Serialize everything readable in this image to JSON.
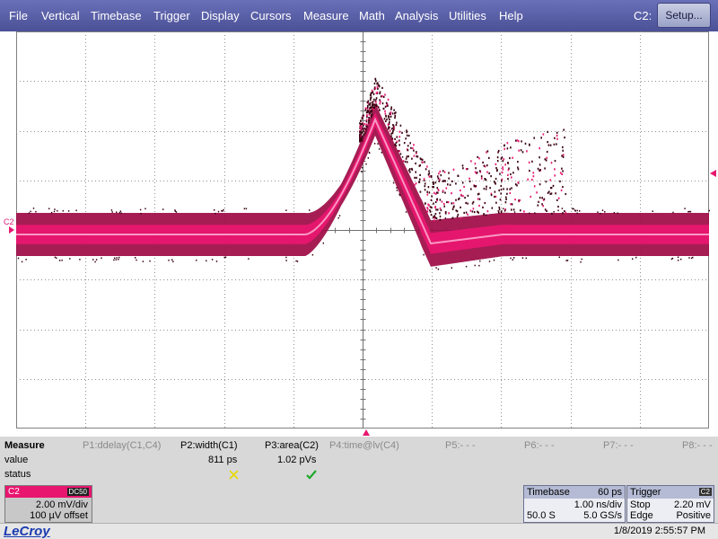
{
  "menu": {
    "items": [
      "File",
      "Vertical",
      "Timebase",
      "Trigger",
      "Display",
      "Cursors",
      "Measure",
      "Math",
      "Analysis",
      "Utilities",
      "Help"
    ],
    "channel_label": "C2:",
    "setup_label": "Setup..."
  },
  "display": {
    "channel_tag": "C2",
    "trace_color": "#e8166f",
    "persistence_edge_color": "#3a0010"
  },
  "measure": {
    "title": "Measure",
    "row_labels": [
      "value",
      "status"
    ],
    "params": [
      {
        "name": "P1:ddelay(C1,C4)",
        "value": "",
        "status": "",
        "active": false
      },
      {
        "name": "P2:width(C1)",
        "value": "811 ps",
        "status": "warning",
        "active": true
      },
      {
        "name": "P3:area(C2)",
        "value": "1.02 pVs",
        "status": "ok",
        "active": true
      },
      {
        "name": "P4:time@lv(C4)",
        "value": "",
        "status": "",
        "active": false
      },
      {
        "name": "P5:- - -",
        "value": "",
        "status": "",
        "active": false
      },
      {
        "name": "P6:- - -",
        "value": "",
        "status": "",
        "active": false
      },
      {
        "name": "P7:- - -",
        "value": "",
        "status": "",
        "active": false
      },
      {
        "name": "P8:- - -",
        "value": "",
        "status": "",
        "active": false
      }
    ]
  },
  "channel": {
    "name": "C2",
    "coupling": "DC50",
    "scale": "2.00 mV/div",
    "offset": "100 µV offset",
    "color": "#e8166f"
  },
  "timebase": {
    "title": "Timebase",
    "delay": "60 ps",
    "scale": "1.00 ns/div",
    "samples": "50.0 S",
    "rate": "5.0 GS/s"
  },
  "trigger": {
    "title": "Trigger",
    "channel": "C2",
    "mode": "Stop",
    "level": "2.20 mV",
    "type": "Edge",
    "slope": "Positive"
  },
  "status_bar": {
    "brand": "LeCroy",
    "datetime": "1/8/2019 2:55:57 PM"
  }
}
